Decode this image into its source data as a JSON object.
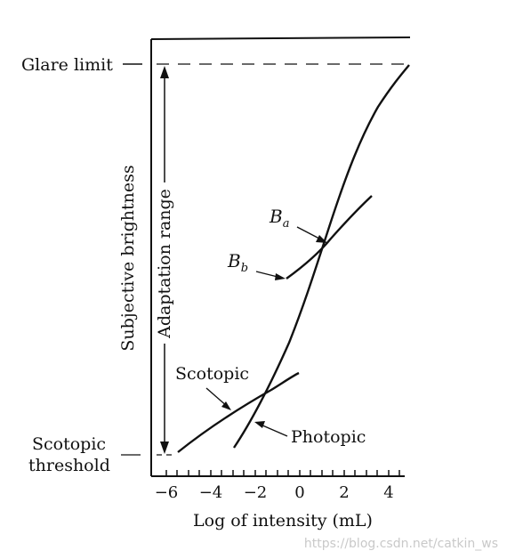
{
  "labels": {
    "glare_limit": "Glare limit",
    "adaptation_range": "Adaptation range",
    "y_axis": "Subjective brightness",
    "x_axis": "Log of intensity (mL)",
    "scotopic": "Scotopic",
    "photopic": "Photopic",
    "scotopic_threshold_line1": "Scotopic",
    "scotopic_threshold_line2": "threshold",
    "b_a": "B",
    "b_a_sub": "a",
    "b_b": "B",
    "b_b_sub": "b"
  },
  "x_ticks": [
    "−6",
    "−4",
    "−2",
    "0",
    "2",
    "4"
  ],
  "watermark": "https://blog.csdn.net/catkin_ws"
}
